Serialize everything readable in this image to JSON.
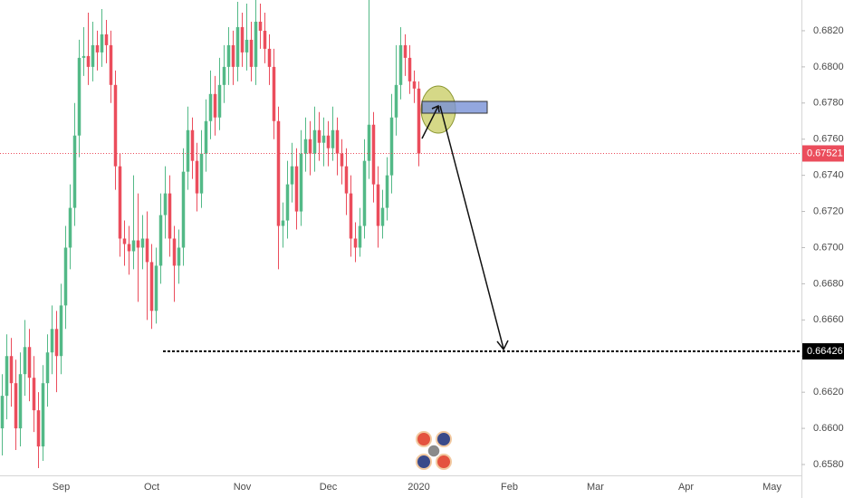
{
  "chart_data": {
    "type": "candlestick",
    "categories": [
      null,
      null,
      null,
      null,
      null,
      null,
      null,
      null,
      null,
      null,
      null,
      null,
      null,
      "Sep",
      null,
      null,
      null,
      null,
      null,
      null,
      null,
      null,
      null,
      null,
      null,
      null,
      null,
      null,
      null,
      null,
      null,
      null,
      null,
      "Oct",
      null,
      null,
      null,
      null,
      null,
      null,
      null,
      null,
      null,
      null,
      null,
      null,
      null,
      null,
      null,
      null,
      null,
      null,
      null,
      "Nov",
      null,
      null,
      null,
      null,
      null,
      null,
      null,
      null,
      null,
      null,
      null,
      null,
      null,
      null,
      null,
      null,
      null,
      null,
      "Dec",
      null,
      null,
      null,
      null,
      null,
      null,
      null,
      null,
      null,
      null,
      null,
      null,
      null,
      null,
      null,
      null,
      null,
      null,
      null,
      "2020",
      null,
      null,
      null,
      null,
      null,
      null,
      null,
      null,
      null,
      null,
      null,
      null,
      null,
      null,
      null,
      null,
      null,
      null,
      null,
      "Feb",
      null,
      null,
      null,
      null,
      null,
      null,
      null,
      null,
      null,
      null,
      null,
      null,
      null,
      null,
      null,
      null,
      null,
      null,
      "Mar",
      null,
      null,
      null,
      null,
      null,
      null,
      null,
      null,
      null,
      null,
      null,
      null,
      null,
      null,
      null,
      null,
      null,
      null,
      null,
      "Apr",
      null,
      null,
      null,
      null,
      null,
      null,
      null,
      null,
      null,
      null,
      null,
      null,
      null,
      null,
      null,
      null,
      null,
      null,
      "May",
      null,
      null,
      null,
      null,
      null,
      null
    ],
    "open": [
      0.66,
      0.6618,
      0.664,
      0.6625,
      0.66,
      0.663,
      0.6645,
      0.6628,
      0.661,
      0.659,
      0.6625,
      0.6642,
      0.6655,
      0.664,
      0.6668,
      0.67,
      0.6722,
      0.6762,
      0.6805,
      0.6806,
      0.68,
      0.6812,
      0.6808,
      0.6818,
      0.6812,
      0.679,
      0.6745,
      0.6705,
      0.6702,
      0.6698,
      0.6704,
      0.67,
      0.6705,
      0.6692,
      0.6665,
      0.669,
      0.6718,
      0.673,
      0.6705,
      0.669,
      0.67,
      0.6742,
      0.6765,
      0.6748,
      0.673,
      0.6752,
      0.677,
      0.6785,
      0.6772,
      0.679,
      0.68,
      0.6812,
      0.68,
      0.6822,
      0.6808,
      0.6815,
      0.68,
      0.6825,
      0.682,
      0.681,
      0.68,
      0.677,
      0.6712,
      0.6715,
      0.6735,
      0.6745,
      0.672,
      0.6752,
      0.676,
      0.6752,
      0.6765,
      0.6758,
      0.6762,
      0.6755,
      0.6765,
      0.6752,
      0.6745,
      0.673,
      0.6705,
      0.67,
      0.6712,
      0.6748,
      0.6768,
      0.6735,
      0.6712,
      0.6722,
      0.674,
      0.6772,
      0.679,
      0.6812,
      0.6805,
      0.6792,
      0.6788,
      null,
      null,
      null,
      null,
      null,
      null,
      null,
      null,
      null,
      null,
      null,
      null,
      null,
      null,
      null,
      null,
      null,
      null,
      null,
      null,
      null,
      null,
      null,
      null,
      null,
      null,
      null,
      null,
      null,
      null,
      null,
      null,
      null,
      null,
      null,
      null,
      null,
      null,
      null,
      null,
      null,
      null,
      null,
      null,
      null,
      null,
      null,
      null,
      null,
      null,
      null,
      null,
      null,
      null,
      null,
      null,
      null,
      null,
      null,
      null,
      null,
      null,
      null,
      null,
      null,
      null,
      null,
      null,
      null,
      null,
      null,
      null,
      null,
      null,
      null,
      null,
      null,
      null,
      null,
      null,
      null,
      null,
      null,
      null
    ],
    "high": [
      0.663,
      0.6652,
      0.665,
      0.6638,
      0.6642,
      0.666,
      0.6655,
      0.664,
      0.662,
      0.6635,
      0.6652,
      0.6668,
      0.6665,
      0.668,
      0.6712,
      0.6735,
      0.678,
      0.6815,
      0.6822,
      0.683,
      0.6825,
      0.682,
      0.6832,
      0.6826,
      0.682,
      0.6798,
      0.6752,
      0.6715,
      0.6712,
      0.674,
      0.673,
      0.6718,
      0.672,
      0.6702,
      0.67,
      0.673,
      0.6745,
      0.674,
      0.6712,
      0.671,
      0.6755,
      0.6778,
      0.6772,
      0.6758,
      0.6765,
      0.6782,
      0.6798,
      0.6795,
      0.6805,
      0.6812,
      0.6822,
      0.682,
      0.6836,
      0.683,
      0.6835,
      0.6825,
      0.6838,
      0.6835,
      0.683,
      0.6818,
      0.681,
      0.6778,
      0.6725,
      0.6748,
      0.6758,
      0.6755,
      0.6765,
      0.6772,
      0.677,
      0.6778,
      0.6775,
      0.6772,
      0.677,
      0.6778,
      0.6772,
      0.676,
      0.6755,
      0.674,
      0.6714,
      0.6722,
      0.676,
      0.6838,
      0.6775,
      0.6745,
      0.6732,
      0.675,
      0.6785,
      0.6812,
      0.6822,
      0.6818,
      0.6812,
      0.6798,
      0.6792,
      null,
      null,
      null,
      null,
      null,
      null,
      null,
      null,
      null,
      null,
      null,
      null,
      null,
      null,
      null,
      null,
      null,
      null,
      null,
      null,
      null,
      null,
      null,
      null,
      null,
      null,
      null,
      null,
      null,
      null,
      null,
      null,
      null,
      null,
      null,
      null,
      null,
      null,
      null,
      null,
      null,
      null,
      null,
      null,
      null,
      null,
      null,
      null,
      null,
      null,
      null,
      null,
      null,
      null,
      null,
      null,
      null,
      null,
      null,
      null,
      null,
      null,
      null,
      null,
      null,
      null,
      null,
      null,
      null,
      null,
      null,
      null,
      null,
      null,
      null,
      null,
      null,
      null,
      null,
      null,
      null,
      null,
      null,
      null
    ],
    "low": [
      0.6585,
      0.6605,
      0.6612,
      0.6588,
      0.659,
      0.6618,
      0.6615,
      0.6598,
      0.6578,
      0.6582,
      0.6612,
      0.663,
      0.662,
      0.663,
      0.6655,
      0.6688,
      0.6712,
      0.675,
      0.6795,
      0.679,
      0.6792,
      0.6798,
      0.68,
      0.6802,
      0.678,
      0.6732,
      0.6695,
      0.669,
      0.6685,
      0.6688,
      0.667,
      0.6688,
      0.666,
      0.6655,
      0.6658,
      0.668,
      0.6705,
      0.6695,
      0.667,
      0.668,
      0.669,
      0.6732,
      0.6738,
      0.672,
      0.6722,
      0.6742,
      0.676,
      0.6762,
      0.6765,
      0.678,
      0.679,
      0.679,
      0.6792,
      0.68,
      0.6798,
      0.6792,
      0.679,
      0.681,
      0.6802,
      0.679,
      0.676,
      0.6688,
      0.67,
      0.6705,
      0.6725,
      0.671,
      0.6712,
      0.6742,
      0.674,
      0.6742,
      0.6748,
      0.6745,
      0.6745,
      0.6748,
      0.674,
      0.6735,
      0.6718,
      0.6695,
      0.6692,
      0.6695,
      0.6705,
      0.6738,
      0.6725,
      0.67,
      0.6705,
      0.6715,
      0.673,
      0.6762,
      0.6782,
      0.6795,
      0.6785,
      0.678,
      0.6745,
      null,
      null,
      null,
      null,
      null,
      null,
      null,
      null,
      null,
      null,
      null,
      null,
      null,
      null,
      null,
      null,
      null,
      null,
      null,
      null,
      null,
      null,
      null,
      null,
      null,
      null,
      null,
      null,
      null,
      null,
      null,
      null,
      null,
      null,
      null,
      null,
      null,
      null,
      null,
      null,
      null,
      null,
      null,
      null,
      null,
      null,
      null,
      null,
      null,
      null,
      null,
      null,
      null,
      null,
      null,
      null,
      null,
      null,
      null,
      null,
      null,
      null,
      null,
      null,
      null,
      null,
      null,
      null,
      null,
      null,
      null,
      null,
      null,
      null,
      null,
      null,
      null,
      null,
      null,
      null,
      null,
      null,
      null,
      null
    ],
    "close": [
      0.6618,
      0.664,
      0.6625,
      0.66,
      0.663,
      0.6645,
      0.6628,
      0.661,
      0.659,
      0.6625,
      0.6642,
      0.6655,
      0.664,
      0.6668,
      0.67,
      0.6722,
      0.6762,
      0.6805,
      0.6806,
      0.68,
      0.6812,
      0.6808,
      0.6818,
      0.6812,
      0.679,
      0.6745,
      0.6705,
      0.6702,
      0.6698,
      0.6704,
      0.67,
      0.6705,
      0.6692,
      0.6665,
      0.669,
      0.6718,
      0.673,
      0.6705,
      0.669,
      0.67,
      0.6742,
      0.6765,
      0.6748,
      0.673,
      0.6752,
      0.677,
      0.6785,
      0.6772,
      0.679,
      0.68,
      0.6812,
      0.68,
      0.6822,
      0.6808,
      0.6815,
      0.68,
      0.6825,
      0.682,
      0.681,
      0.68,
      0.677,
      0.6712,
      0.6715,
      0.6735,
      0.6745,
      0.672,
      0.6752,
      0.676,
      0.6752,
      0.6765,
      0.6758,
      0.6762,
      0.6755,
      0.6765,
      0.6752,
      0.6745,
      0.673,
      0.6705,
      0.67,
      0.6712,
      0.6748,
      0.6768,
      0.6735,
      0.6712,
      0.6722,
      0.674,
      0.6772,
      0.679,
      0.6812,
      0.6805,
      0.6792,
      0.6788,
      0.6752,
      null,
      null,
      null,
      null,
      null,
      null,
      null,
      null,
      null,
      null,
      null,
      null,
      null,
      null,
      null,
      null,
      null,
      null,
      null,
      null,
      null,
      null,
      null,
      null,
      null,
      null,
      null,
      null,
      null,
      null,
      null,
      null,
      null,
      null,
      null,
      null,
      null,
      null,
      null,
      null,
      null,
      null,
      null,
      null,
      null,
      null,
      null,
      null,
      null,
      null,
      null,
      null,
      null,
      null,
      null,
      null,
      null,
      null,
      null,
      null,
      null,
      null,
      null,
      null,
      null,
      null,
      null,
      null,
      null,
      null,
      null,
      null,
      null,
      null,
      null,
      null,
      null,
      null,
      null,
      null,
      null,
      null,
      null,
      null
    ],
    "up_color": "#53b987",
    "down_color": "#eb4d5c",
    "ylim": [
      0.6574,
      0.6837
    ],
    "yticks": [
      {
        "value": 0.658,
        "label": "0.65800"
      },
      {
        "value": 0.66,
        "label": "0.66000"
      },
      {
        "value": 0.662,
        "label": "0.66200"
      },
      {
        "value": 0.664,
        "label": "0.66400"
      },
      {
        "value": 0.666,
        "label": "0.66600"
      },
      {
        "value": 0.668,
        "label": "0.66800"
      },
      {
        "value": 0.67,
        "label": "0.67000"
      },
      {
        "value": 0.672,
        "label": "0.67200"
      },
      {
        "value": 0.674,
        "label": "0.67400"
      },
      {
        "value": 0.676,
        "label": "0.67600"
      },
      {
        "value": 0.678,
        "label": "0.67800"
      },
      {
        "value": 0.68,
        "label": "0.68000"
      },
      {
        "value": 0.682,
        "label": "0.68200"
      }
    ],
    "grid": false,
    "price_line": {
      "value": 0.67521,
      "label": "0.67521",
      "color": "#eb4d5c"
    },
    "target_line": {
      "value": 0.66426,
      "label": "0.66426",
      "color": "#000000"
    }
  }
}
